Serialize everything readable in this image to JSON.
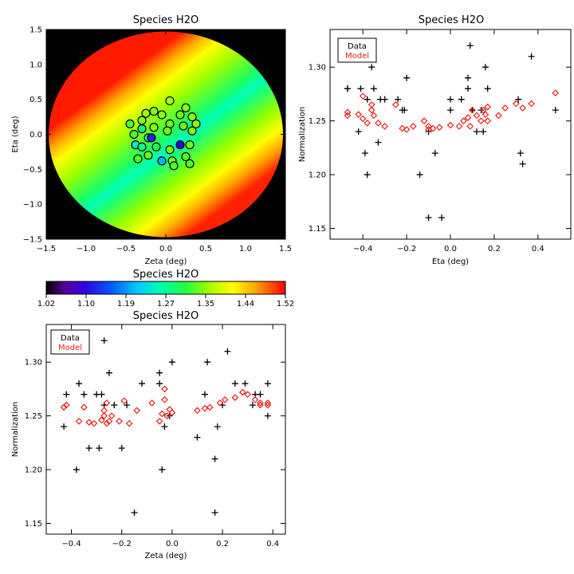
{
  "chart_data": [
    {
      "id": "map",
      "type": "heatmap",
      "title": "Species H2O",
      "xlabel": "Zeta (deg)",
      "ylabel": "Eta (deg)",
      "xlim": [
        -1.5,
        1.5
      ],
      "ylim": [
        -1.5,
        1.5
      ],
      "xticks": [
        -1.5,
        -1.0,
        -0.5,
        0.0,
        0.5,
        1.0,
        1.5
      ],
      "yticks": [
        -1.5,
        -1.0,
        -0.5,
        0.0,
        0.5,
        1.0,
        1.5
      ],
      "xtick_labels": [
        "−1.5",
        "−1.0",
        "−0.5",
        "0.0",
        "0.5",
        "1.0",
        "1.5"
      ],
      "ytick_labels": [
        "−1.5",
        "−1.0",
        "−0.5",
        "0.0",
        "0.5",
        "1.0",
        "1.5"
      ],
      "field_radius": 1.47,
      "points": [
        {
          "x": -0.25,
          "y": 0.3,
          "v": 1.36
        },
        {
          "x": -0.15,
          "y": 0.33,
          "v": 1.35
        },
        {
          "x": 0.05,
          "y": 0.48,
          "v": 1.36
        },
        {
          "x": 0.25,
          "y": 0.38,
          "v": 1.35
        },
        {
          "x": -0.3,
          "y": 0.2,
          "v": 1.35
        },
        {
          "x": -0.05,
          "y": 0.28,
          "v": 1.35
        },
        {
          "x": 0.18,
          "y": 0.28,
          "v": 1.34
        },
        {
          "x": 0.33,
          "y": 0.25,
          "v": 1.35
        },
        {
          "x": -0.45,
          "y": 0.15,
          "v": 1.33
        },
        {
          "x": -0.3,
          "y": 0.08,
          "v": 1.28
        },
        {
          "x": -0.15,
          "y": 0.1,
          "v": 1.35
        },
        {
          "x": 0.05,
          "y": 0.15,
          "v": 1.34
        },
        {
          "x": 0.22,
          "y": 0.12,
          "v": 1.34
        },
        {
          "x": 0.38,
          "y": 0.15,
          "v": 1.35
        },
        {
          "x": -0.4,
          "y": 0.0,
          "v": 1.33
        },
        {
          "x": -0.22,
          "y": -0.05,
          "v": 1.27
        },
        {
          "x": -0.18,
          "y": -0.05,
          "v": 1.12
        },
        {
          "x": 0.02,
          "y": 0.05,
          "v": 1.34
        },
        {
          "x": 0.18,
          "y": -0.15,
          "v": 1.1
        },
        {
          "x": 0.33,
          "y": 0.05,
          "v": 1.35
        },
        {
          "x": -0.38,
          "y": -0.15,
          "v": 1.24
        },
        {
          "x": -0.3,
          "y": -0.18,
          "v": 1.28
        },
        {
          "x": -0.12,
          "y": -0.18,
          "v": 1.3
        },
        {
          "x": 0.05,
          "y": -0.22,
          "v": 1.34
        },
        {
          "x": 0.3,
          "y": -0.15,
          "v": 1.34
        },
        {
          "x": -0.35,
          "y": -0.35,
          "v": 1.33
        },
        {
          "x": -0.22,
          "y": -0.3,
          "v": 1.34
        },
        {
          "x": -0.05,
          "y": -0.38,
          "v": 1.2
        },
        {
          "x": 0.08,
          "y": -0.38,
          "v": 1.34
        },
        {
          "x": 0.25,
          "y": -0.32,
          "v": 1.33
        },
        {
          "x": 0.1,
          "y": -0.45,
          "v": 1.33
        },
        {
          "x": 0.3,
          "y": -0.42,
          "v": 1.33
        }
      ]
    },
    {
      "id": "colorbar",
      "type": "colorbar",
      "title": "Species H2O",
      "min": 1.02,
      "max": 1.52,
      "ticks": [
        "1.02",
        "1.10",
        "1.19",
        "1.27",
        "1.35",
        "1.44",
        "1.52"
      ]
    },
    {
      "id": "eta",
      "type": "scatter",
      "title": "Species H2O",
      "xlabel": "Eta (deg)",
      "ylabel": "Normalization",
      "xlim": [
        -0.55,
        0.55
      ],
      "ylim": [
        1.14,
        1.335
      ],
      "xticks": [
        -0.4,
        -0.2,
        0.0,
        0.2,
        0.4
      ],
      "yticks": [
        1.15,
        1.2,
        1.25,
        1.3
      ],
      "xtick_labels": [
        "−0.4",
        "−0.2",
        "0.0",
        "0.2",
        "0.4"
      ],
      "ytick_labels": [
        "1.15",
        "1.20",
        "1.25",
        "1.30"
      ],
      "legend": {
        "position": "top-left",
        "entries": [
          "Data",
          "Model"
        ]
      },
      "series": [
        {
          "name": "Data",
          "marker": "plus",
          "color": "#000000",
          "x": [
            -0.47,
            -0.47,
            -0.42,
            -0.41,
            -0.39,
            -0.38,
            -0.38,
            -0.36,
            -0.35,
            -0.33,
            -0.32,
            -0.3,
            -0.24,
            -0.22,
            -0.21,
            -0.2,
            -0.14,
            -0.1,
            -0.1,
            -0.07,
            -0.04,
            0.0,
            0.0,
            0.05,
            0.08,
            0.08,
            0.09,
            0.1,
            0.12,
            0.14,
            0.15,
            0.16,
            0.17,
            0.31,
            0.32,
            0.33,
            0.37,
            0.48
          ],
          "y": [
            1.28,
            1.28,
            1.24,
            1.28,
            1.22,
            1.27,
            1.2,
            1.3,
            1.28,
            1.23,
            1.27,
            1.27,
            1.27,
            1.26,
            1.26,
            1.29,
            1.2,
            1.16,
            1.24,
            1.22,
            1.16,
            1.27,
            1.26,
            1.27,
            1.29,
            1.28,
            1.32,
            1.26,
            1.24,
            1.26,
            1.24,
            1.3,
            1.28,
            1.27,
            1.22,
            1.21,
            1.31,
            1.26
          ]
        },
        {
          "name": "Model",
          "marker": "diamond",
          "color": "#e8201c",
          "x": [
            -0.47,
            -0.47,
            -0.42,
            -0.4,
            -0.4,
            -0.38,
            -0.36,
            -0.36,
            -0.35,
            -0.33,
            -0.3,
            -0.25,
            -0.22,
            -0.2,
            -0.17,
            -0.12,
            -0.1,
            -0.1,
            -0.08,
            -0.05,
            0.0,
            0.04,
            0.06,
            0.08,
            0.09,
            0.1,
            0.12,
            0.14,
            0.15,
            0.16,
            0.17,
            0.17,
            0.22,
            0.25,
            0.3,
            0.33,
            0.37,
            0.48
          ],
          "y": [
            1.255,
            1.258,
            1.256,
            1.273,
            1.252,
            1.248,
            1.265,
            1.26,
            1.255,
            1.248,
            1.245,
            1.265,
            1.243,
            1.242,
            1.245,
            1.25,
            1.245,
            1.242,
            1.243,
            1.244,
            1.246,
            1.245,
            1.25,
            1.253,
            1.245,
            1.26,
            1.255,
            1.25,
            1.26,
            1.256,
            1.263,
            1.25,
            1.255,
            1.262,
            1.266,
            1.262,
            1.266,
            1.276
          ]
        }
      ]
    },
    {
      "id": "zeta",
      "type": "scatter",
      "title": "Species H2O",
      "xlabel": "Zeta (deg)",
      "ylabel": "Normalization",
      "xlim": [
        -0.5,
        0.45
      ],
      "ylim": [
        1.14,
        1.335
      ],
      "xticks": [
        -0.4,
        -0.2,
        0.0,
        0.2,
        0.4
      ],
      "yticks": [
        1.15,
        1.2,
        1.25,
        1.3
      ],
      "xtick_labels": [
        "−0.4",
        "−0.2",
        "0.0",
        "0.2",
        "0.4"
      ],
      "ytick_labels": [
        "1.15",
        "1.20",
        "1.25",
        "1.30"
      ],
      "legend": {
        "position": "top-left",
        "entries": [
          "Data",
          "Model"
        ]
      },
      "series": [
        {
          "name": "Data",
          "marker": "plus",
          "color": "#000000",
          "x": [
            -0.43,
            -0.42,
            -0.38,
            -0.37,
            -0.35,
            -0.33,
            -0.3,
            -0.29,
            -0.28,
            -0.27,
            -0.27,
            -0.25,
            -0.23,
            -0.2,
            -0.18,
            -0.15,
            -0.12,
            -0.05,
            -0.05,
            -0.04,
            -0.03,
            -0.01,
            0.0,
            0.1,
            0.13,
            0.14,
            0.17,
            0.17,
            0.18,
            0.2,
            0.22,
            0.25,
            0.29,
            0.32,
            0.33,
            0.35,
            0.38,
            0.38
          ],
          "y": [
            1.24,
            1.27,
            1.2,
            1.28,
            1.27,
            1.22,
            1.27,
            1.22,
            1.27,
            1.26,
            1.32,
            1.29,
            1.26,
            1.22,
            1.26,
            1.16,
            1.28,
            1.28,
            1.29,
            1.2,
            1.24,
            1.25,
            1.3,
            1.23,
            1.27,
            1.3,
            1.21,
            1.16,
            1.24,
            1.26,
            1.31,
            1.28,
            1.28,
            1.26,
            1.27,
            1.27,
            1.28,
            1.25
          ]
        },
        {
          "name": "Model",
          "marker": "diamond",
          "color": "#e8201c",
          "x": [
            -0.43,
            -0.42,
            -0.37,
            -0.35,
            -0.33,
            -0.31,
            -0.28,
            -0.27,
            -0.27,
            -0.26,
            -0.26,
            -0.25,
            -0.24,
            -0.21,
            -0.19,
            -0.17,
            -0.14,
            -0.08,
            -0.05,
            -0.04,
            -0.03,
            -0.03,
            -0.02,
            -0.01,
            0.0,
            0.1,
            0.13,
            0.15,
            0.19,
            0.21,
            0.25,
            0.28,
            0.3,
            0.33,
            0.35,
            0.35,
            0.38,
            0.38
          ],
          "y": [
            1.258,
            1.26,
            1.245,
            1.258,
            1.244,
            1.243,
            1.246,
            1.255,
            1.25,
            1.243,
            1.262,
            1.245,
            1.25,
            1.245,
            1.264,
            1.243,
            1.255,
            1.262,
            1.245,
            1.252,
            1.265,
            1.275,
            1.25,
            1.256,
            1.253,
            1.255,
            1.257,
            1.258,
            1.262,
            1.265,
            1.267,
            1.272,
            1.27,
            1.265,
            1.262,
            1.26,
            1.26,
            1.262
          ]
        }
      ]
    }
  ]
}
